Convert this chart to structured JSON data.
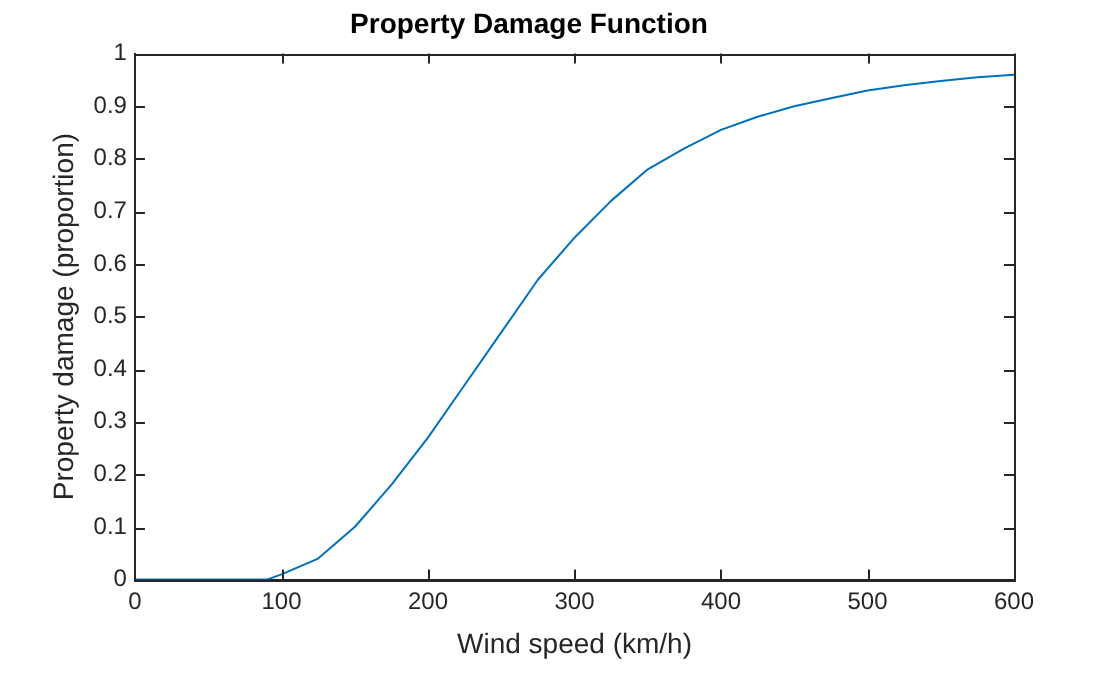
{
  "chart_data": {
    "type": "line",
    "title": "Property Damage Function",
    "xlabel": "Wind speed (km/h)",
    "ylabel": "Property damage (proportion)",
    "x": [
      0,
      25,
      50,
      75,
      90,
      100,
      125,
      150,
      175,
      200,
      225,
      250,
      275,
      300,
      325,
      350,
      375,
      400,
      425,
      450,
      475,
      500,
      525,
      550,
      575,
      600
    ],
    "series": [
      {
        "color": "#0072bd",
        "values": [
          0,
          0,
          0,
          0,
          0,
          0.01,
          0.04,
          0.1,
          0.18,
          0.27,
          0.37,
          0.47,
          0.57,
          0.65,
          0.72,
          0.78,
          0.82,
          0.855,
          0.88,
          0.9,
          0.915,
          0.93,
          0.94,
          0.948,
          0.955,
          0.96
        ]
      }
    ],
    "xlim": [
      0,
      600
    ],
    "xticks": [
      0,
      100,
      200,
      300,
      400,
      500,
      600
    ],
    "ylim": [
      0,
      1
    ],
    "yticks": [
      0,
      0.1,
      0.2,
      0.3,
      0.4,
      0.5,
      0.6,
      0.7,
      0.8,
      0.9,
      1
    ],
    "grid": false,
    "legend": false,
    "marker": "none",
    "line_style": "solid"
  }
}
